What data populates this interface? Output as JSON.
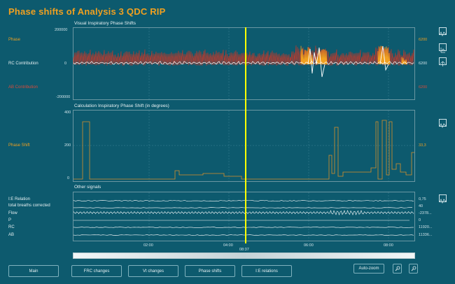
{
  "title": "Phase shifts of Analysis 3 QDC RIP",
  "panels": {
    "visual": {
      "title": "Visual Inspiratory Phase Shifts",
      "left_labels": [
        "Phase",
        "RC Contribution",
        "AB Contribution"
      ],
      "y_ticks": [
        "200000",
        "0",
        "-200000"
      ],
      "right_ticks": [
        "6200",
        "6200",
        "6200"
      ]
    },
    "calc": {
      "title": "Calculation Inspiratory Phase Shift (in degrees)",
      "left_label": "Phase Shift",
      "y_ticks": [
        "400",
        "200",
        "0"
      ],
      "right_value": "33,3"
    },
    "other": {
      "title": "Other signals",
      "rows": [
        {
          "label": "I:E Relation",
          "value": "0,75"
        },
        {
          "label": "total breaths corrected",
          "value": "40"
        },
        {
          "label": "Flow",
          "value": "-2378..."
        },
        {
          "label": "P",
          "value": "0"
        },
        {
          "label": "RC",
          "value": "11920..."
        },
        {
          "label": "AB",
          "value": "11336..."
        }
      ]
    }
  },
  "time_axis": {
    "ticks": [
      "02:00",
      "04:00",
      "06:00",
      "08:00"
    ],
    "cursor": "08:37"
  },
  "buttons": {
    "main": "Main",
    "frc": "FRC changes",
    "vt": "Vt changes",
    "phase": "Phase shifts",
    "ie": "I:E relations",
    "autozoom": "Auto-zoom"
  },
  "colors": {
    "accent": "#f0a020",
    "cursor": "#ffff00",
    "ab": "#c0392b",
    "bg": "#0d5a6e"
  },
  "icons": [
    "waveform-icon",
    "cursor-icon",
    "marker-icon",
    "zoom-in-icon",
    "zoom-out-icon"
  ]
}
